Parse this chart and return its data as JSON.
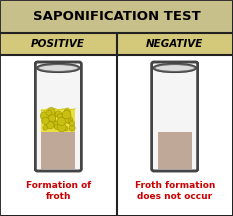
{
  "title": "SAPONIFICATION TEST",
  "title_bg": "#c8c08a",
  "title_fontsize": 9.5,
  "col1_label": "POSITIVE",
  "col2_label": "NEGATIVE",
  "label_bg": "#d4c87a",
  "label_fontsize": 7.5,
  "bg_color": "#ffffff",
  "border_color": "#222222",
  "outer_bg": "#d8d0a8",
  "liquid_color": "#c0a898",
  "froth_color": "#e8e040",
  "froth_color2": "#c8c010",
  "tube_outline": "#444444",
  "caption1": "Formation of\nfroth",
  "caption2": "Froth formation\ndoes not occur",
  "caption_color": "#cc0000",
  "caption_fontsize": 6.5
}
